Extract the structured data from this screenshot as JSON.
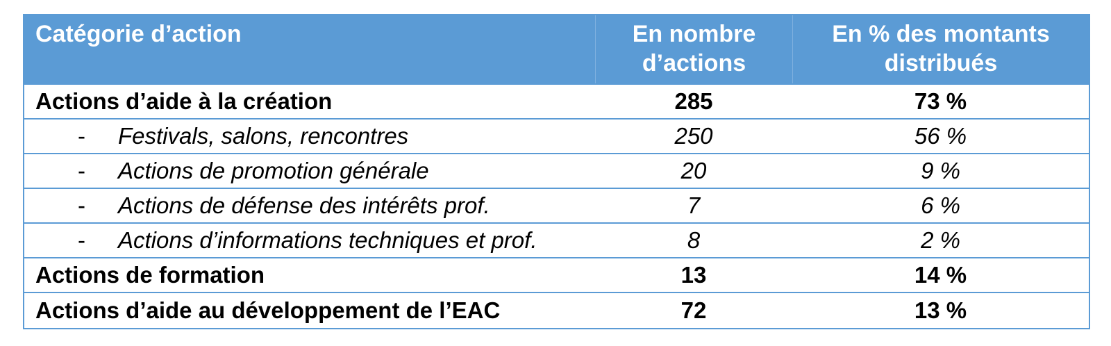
{
  "table": {
    "header": {
      "category": "Catégorie d’action",
      "count_line1": "En nombre",
      "count_line2": "d’actions",
      "pct_line1": "En % des montants",
      "pct_line2": "distribués"
    },
    "rows": [
      {
        "label": "Actions d’aide à la création",
        "count": "285",
        "pct": "73 %",
        "style": "bold"
      },
      {
        "bullet": "-",
        "label": "Festivals, salons, rencontres",
        "count": "250",
        "pct": "56 %",
        "style": "sub"
      },
      {
        "bullet": "-",
        "label": "Actions de promotion générale",
        "count": "20",
        "pct": "9 %",
        "style": "sub"
      },
      {
        "bullet": "-",
        "label": "Actions de défense des intérêts prof.",
        "count": "7",
        "pct": "6 %",
        "style": "sub"
      },
      {
        "bullet": "-",
        "label": "Actions d’informations techniques et prof.",
        "count": "8",
        "pct": "2 %",
        "style": "sub"
      },
      {
        "label": "Actions de formation",
        "count": "13",
        "pct": "14 %",
        "style": "bold"
      },
      {
        "label": "Actions d’aide au développement de l’EAC",
        "count": "72",
        "pct": "13 %",
        "style": "bold"
      }
    ],
    "colors": {
      "header_bg": "#5b9bd5",
      "border": "#5b9bd5",
      "header_text": "#ffffff"
    }
  }
}
